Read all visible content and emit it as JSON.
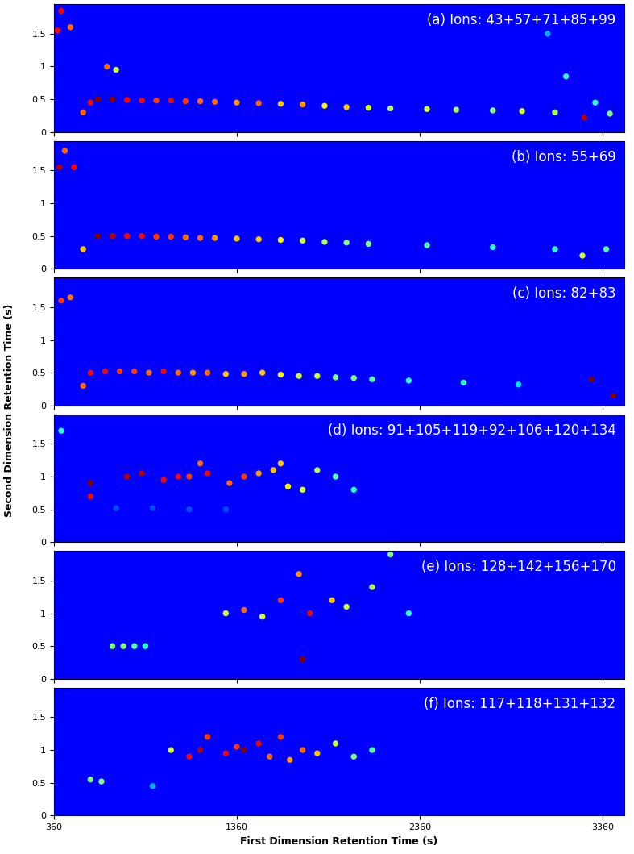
{
  "figure": {
    "x_label": "First Dimension Retention Time (s)",
    "y_label": "Second Dimension Retention Time (s)"
  },
  "chart_data": [
    {
      "type": "scatter",
      "title": "(a) Ions: 43+57+71+85+99",
      "tick_labels": "y",
      "xlim": [
        360,
        3480
      ],
      "ylim": [
        0,
        1.95
      ],
      "xticks": [
        360,
        1360,
        2360,
        3360
      ],
      "yticks": [
        0,
        0.5,
        1,
        1.5
      ],
      "color_range": [
        0,
        1
      ],
      "x": [
        380,
        400,
        450,
        520,
        560,
        600,
        680,
        760,
        840,
        920,
        1000,
        1080,
        1160,
        1240,
        1360,
        1480,
        1600,
        1720,
        1840,
        1960,
        2080,
        2200,
        2400,
        2560,
        2760,
        2920,
        3100,
        3260,
        3400,
        3160,
        3060,
        3320,
        650,
        700
      ],
      "y": [
        1.55,
        1.85,
        1.6,
        0.3,
        0.45,
        0.5,
        0.5,
        0.49,
        0.48,
        0.48,
        0.48,
        0.47,
        0.47,
        0.46,
        0.45,
        0.44,
        0.43,
        0.42,
        0.4,
        0.38,
        0.37,
        0.36,
        0.35,
        0.34,
        0.33,
        0.32,
        0.3,
        0.22,
        0.28,
        0.85,
        1.5,
        0.45,
        1.0,
        0.95
      ],
      "values": [
        0.9,
        0.9,
        0.8,
        0.8,
        0.9,
        1.0,
        1.0,
        0.9,
        0.9,
        0.85,
        0.9,
        0.85,
        0.8,
        0.8,
        0.75,
        0.8,
        0.7,
        0.75,
        0.65,
        0.7,
        0.6,
        0.55,
        0.6,
        0.55,
        0.5,
        0.6,
        0.55,
        0.95,
        0.5,
        0.4,
        0.3,
        0.4,
        0.8,
        0.6
      ]
    },
    {
      "type": "scatter",
      "title": "(b) Ions: 55+69",
      "tick_labels": "y",
      "xlim": [
        360,
        3480
      ],
      "ylim": [
        0,
        1.95
      ],
      "xticks": [
        360,
        1360,
        2360,
        3360
      ],
      "yticks": [
        0,
        0.5,
        1,
        1.5
      ],
      "color_range": [
        0,
        1
      ],
      "x": [
        390,
        420,
        470,
        520,
        600,
        680,
        760,
        840,
        920,
        1000,
        1080,
        1160,
        1240,
        1360,
        1480,
        1600,
        1720,
        1840,
        1960,
        2080,
        2400,
        2760,
        3100,
        3250,
        3380
      ],
      "y": [
        1.55,
        1.8,
        1.55,
        0.3,
        0.5,
        0.5,
        0.5,
        0.5,
        0.49,
        0.49,
        0.48,
        0.47,
        0.47,
        0.46,
        0.45,
        0.44,
        0.43,
        0.41,
        0.4,
        0.38,
        0.36,
        0.33,
        0.3,
        0.2,
        0.3
      ],
      "values": [
        0.95,
        0.8,
        0.9,
        0.7,
        1.0,
        0.95,
        0.9,
        0.9,
        0.85,
        0.85,
        0.8,
        0.8,
        0.75,
        0.7,
        0.7,
        0.65,
        0.6,
        0.55,
        0.5,
        0.5,
        0.45,
        0.4,
        0.4,
        0.6,
        0.45
      ]
    },
    {
      "type": "scatter",
      "title": "(c) Ions: 82+83",
      "tick_labels": "y",
      "xlim": [
        360,
        3480
      ],
      "ylim": [
        0,
        1.95
      ],
      "xticks": [
        360,
        1360,
        2360,
        3360
      ],
      "yticks": [
        0,
        0.5,
        1,
        1.5
      ],
      "color_range": [
        0,
        1
      ],
      "x": [
        400,
        450,
        520,
        560,
        640,
        720,
        800,
        880,
        960,
        1040,
        1120,
        1200,
        1300,
        1400,
        1500,
        1600,
        1700,
        1800,
        1900,
        2000,
        2100,
        2300,
        2600,
        2900,
        3300,
        3420
      ],
      "y": [
        1.6,
        1.65,
        0.3,
        0.5,
        0.52,
        0.52,
        0.52,
        0.5,
        0.52,
        0.5,
        0.5,
        0.5,
        0.48,
        0.48,
        0.5,
        0.47,
        0.45,
        0.45,
        0.43,
        0.42,
        0.4,
        0.38,
        0.35,
        0.32,
        0.4,
        0.15
      ],
      "values": [
        0.85,
        0.8,
        0.8,
        0.9,
        0.9,
        0.85,
        0.85,
        0.8,
        0.9,
        0.8,
        0.75,
        0.8,
        0.7,
        0.75,
        0.7,
        0.65,
        0.6,
        0.6,
        0.5,
        0.5,
        0.45,
        0.4,
        0.4,
        0.35,
        1.0,
        1.0
      ]
    },
    {
      "type": "scatter",
      "title": "(d) Ions: 91+105+119+92+106+120+134",
      "tick_labels": "y",
      "xlim": [
        360,
        3480
      ],
      "ylim": [
        0,
        1.95
      ],
      "xticks": [
        360,
        1360,
        2360,
        3360
      ],
      "yticks": [
        0,
        0.5,
        1,
        1.5
      ],
      "color_range": [
        0,
        1
      ],
      "x": [
        400,
        560,
        560,
        760,
        840,
        960,
        1040,
        1100,
        1160,
        1200,
        1320,
        1400,
        1480,
        1560,
        1600,
        1640,
        1720,
        1800,
        1900,
        2000,
        700,
        900,
        1100,
        1300
      ],
      "y": [
        1.7,
        0.9,
        0.7,
        1.0,
        1.05,
        0.95,
        1.0,
        1.0,
        1.2,
        1.05,
        0.9,
        1.0,
        1.05,
        1.1,
        1.2,
        0.85,
        0.8,
        1.1,
        1.0,
        0.8,
        0.52,
        0.52,
        0.5,
        0.5
      ],
      "values": [
        0.4,
        1.0,
        0.9,
        0.95,
        0.95,
        0.9,
        0.9,
        0.85,
        0.8,
        0.9,
        0.8,
        0.85,
        0.75,
        0.7,
        0.7,
        0.65,
        0.6,
        0.55,
        0.45,
        0.4,
        0.2,
        0.2,
        0.2,
        0.2
      ]
    },
    {
      "type": "scatter",
      "title": "(e) Ions: 128+142+156+170",
      "tick_labels": "y",
      "xlim": [
        360,
        3480
      ],
      "ylim": [
        0,
        1.95
      ],
      "xticks": [
        360,
        1360,
        2360,
        3360
      ],
      "yticks": [
        0,
        0.5,
        1,
        1.5
      ],
      "color_range": [
        0,
        1
      ],
      "x": [
        680,
        740,
        800,
        860,
        1300,
        1400,
        1500,
        1600,
        1700,
        1720,
        1760,
        1880,
        1960,
        2100,
        2200,
        2300
      ],
      "y": [
        0.5,
        0.5,
        0.5,
        0.5,
        1.0,
        1.05,
        0.95,
        1.2,
        1.6,
        0.3,
        1.0,
        1.2,
        1.1,
        1.4,
        1.9,
        1.0
      ],
      "values": [
        0.5,
        0.5,
        0.45,
        0.4,
        0.6,
        0.8,
        0.6,
        0.85,
        0.75,
        1.0,
        0.9,
        0.7,
        0.6,
        0.55,
        0.5,
        0.4
      ]
    },
    {
      "type": "scatter",
      "title": "(f) Ions: 117+118+131+132",
      "xlim": [
        360,
        3480
      ],
      "ylim": [
        0,
        1.95
      ],
      "xticks": [
        360,
        1360,
        2360,
        3360
      ],
      "yticks": [
        0,
        0.5,
        1,
        1.5
      ],
      "color_range": [
        0,
        1
      ],
      "x": [
        560,
        620,
        900,
        1000,
        1100,
        1160,
        1200,
        1300,
        1360,
        1400,
        1480,
        1540,
        1600,
        1650,
        1720,
        1800,
        1900,
        2000,
        2100
      ],
      "y": [
        0.55,
        0.52,
        0.45,
        1.0,
        0.9,
        1.0,
        1.2,
        0.95,
        1.05,
        1.0,
        1.1,
        0.9,
        1.2,
        0.85,
        1.0,
        0.95,
        1.1,
        0.9,
        1.0
      ],
      "values": [
        0.5,
        0.5,
        0.3,
        0.6,
        0.9,
        0.95,
        0.85,
        0.9,
        0.85,
        1.0,
        0.9,
        0.8,
        0.85,
        0.75,
        0.8,
        0.7,
        0.6,
        0.5,
        0.45
      ]
    }
  ]
}
